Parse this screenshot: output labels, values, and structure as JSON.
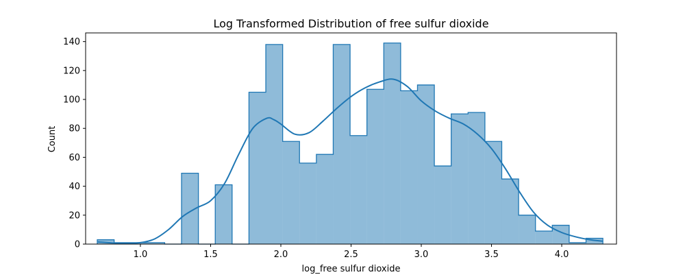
{
  "chart_data": {
    "type": "histogram",
    "title": "Log Transformed Distribution of free sulfur dioxide",
    "xlabel": "log_free sulfur dioxide",
    "ylabel": "Count",
    "xlim": [
      0.61,
      4.39
    ],
    "ylim": [
      0,
      146
    ],
    "xticks": [
      1.0,
      1.5,
      2.0,
      2.5,
      3.0,
      3.5,
      4.0
    ],
    "xtick_labels": [
      "1.0",
      "1.5",
      "2.0",
      "2.5",
      "3.0",
      "3.5",
      "4.0"
    ],
    "yticks": [
      0,
      20,
      40,
      60,
      80,
      100,
      120,
      140
    ],
    "ytick_labels": [
      "0",
      "20",
      "40",
      "60",
      "80",
      "100",
      "120",
      "140"
    ],
    "grid": false,
    "legend": "none",
    "colors": {
      "bar_fill": "#1f77b4",
      "bar_fill_opacity": 0.5,
      "edge": "#1f77b4",
      "kde_line": "#1f77b4"
    },
    "bins": [
      {
        "x0": 0.693,
        "x1": 0.813,
        "count": 3
      },
      {
        "x0": 0.813,
        "x1": 0.933,
        "count": 1
      },
      {
        "x0": 0.933,
        "x1": 1.053,
        "count": 1
      },
      {
        "x0": 1.053,
        "x1": 1.173,
        "count": 1
      },
      {
        "x0": 1.173,
        "x1": 1.293,
        "count": 0
      },
      {
        "x0": 1.293,
        "x1": 1.413,
        "count": 49
      },
      {
        "x0": 1.413,
        "x1": 1.533,
        "count": 0
      },
      {
        "x0": 1.533,
        "x1": 1.653,
        "count": 41
      },
      {
        "x0": 1.653,
        "x1": 1.773,
        "count": 0
      },
      {
        "x0": 1.773,
        "x1": 1.893,
        "count": 105
      },
      {
        "x0": 1.893,
        "x1": 2.013,
        "count": 138
      },
      {
        "x0": 2.013,
        "x1": 2.133,
        "count": 71
      },
      {
        "x0": 2.133,
        "x1": 2.253,
        "count": 56
      },
      {
        "x0": 2.253,
        "x1": 2.373,
        "count": 62
      },
      {
        "x0": 2.373,
        "x1": 2.493,
        "count": 138
      },
      {
        "x0": 2.493,
        "x1": 2.613,
        "count": 75
      },
      {
        "x0": 2.613,
        "x1": 2.733,
        "count": 107
      },
      {
        "x0": 2.733,
        "x1": 2.853,
        "count": 139
      },
      {
        "x0": 2.853,
        "x1": 2.973,
        "count": 106
      },
      {
        "x0": 2.973,
        "x1": 3.093,
        "count": 110
      },
      {
        "x0": 3.093,
        "x1": 3.213,
        "count": 54
      },
      {
        "x0": 3.213,
        "x1": 3.333,
        "count": 90
      },
      {
        "x0": 3.333,
        "x1": 3.453,
        "count": 91
      },
      {
        "x0": 3.453,
        "x1": 3.573,
        "count": 71
      },
      {
        "x0": 3.573,
        "x1": 3.693,
        "count": 45
      },
      {
        "x0": 3.693,
        "x1": 3.813,
        "count": 20
      },
      {
        "x0": 3.813,
        "x1": 3.933,
        "count": 9
      },
      {
        "x0": 3.933,
        "x1": 4.053,
        "count": 13
      },
      {
        "x0": 4.053,
        "x1": 4.173,
        "count": 1
      },
      {
        "x0": 4.173,
        "x1": 4.293,
        "count": 4
      }
    ],
    "kde": {
      "x": [
        0.7,
        0.8,
        0.9,
        1.0,
        1.1,
        1.2,
        1.3,
        1.4,
        1.5,
        1.6,
        1.7,
        1.8,
        1.9,
        1.95,
        2.0,
        2.1,
        2.2,
        2.3,
        2.4,
        2.5,
        2.6,
        2.7,
        2.8,
        2.9,
        3.0,
        3.1,
        3.2,
        3.3,
        3.4,
        3.5,
        3.6,
        3.7,
        3.8,
        3.9,
        4.0,
        4.1,
        4.2,
        4.29
      ],
      "y": [
        1.5,
        0.8,
        0.5,
        1.0,
        3.5,
        10,
        19,
        25,
        30,
        42,
        62,
        80,
        87,
        86,
        83,
        76,
        77,
        85,
        94,
        102,
        108,
        112,
        114,
        109,
        99,
        92,
        87,
        83,
        76,
        66,
        52,
        36,
        22,
        13,
        8,
        5,
        3,
        2
      ]
    }
  }
}
